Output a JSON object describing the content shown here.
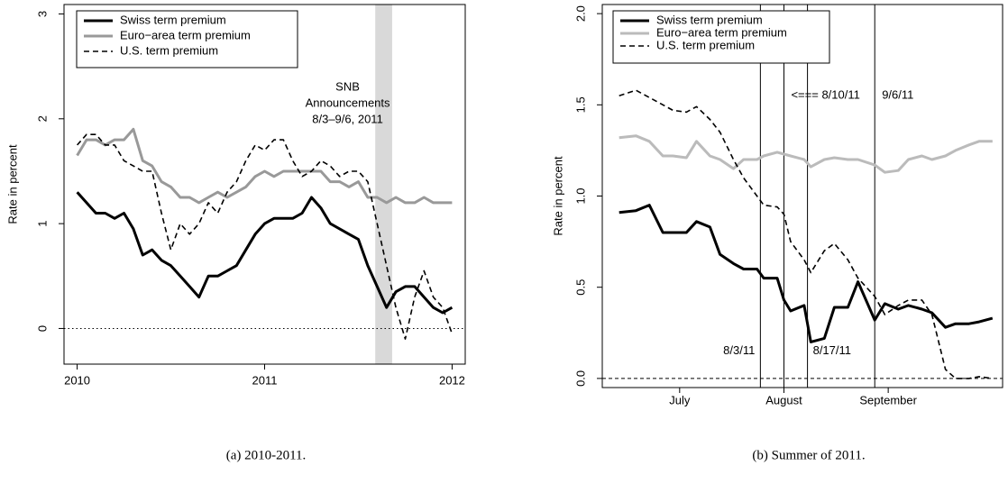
{
  "chart_data": [
    {
      "type": "line",
      "caption": "(a) 2010-2011.",
      "ylabel": "Rate in percent",
      "x": [
        2010,
        2010.05,
        2010.1,
        2010.15,
        2010.2,
        2010.25,
        2010.3,
        2010.35,
        2010.4,
        2010.45,
        2010.5,
        2010.55,
        2010.6,
        2010.65,
        2010.7,
        2010.75,
        2010.8,
        2010.85,
        2010.9,
        2010.95,
        2011,
        2011.05,
        2011.1,
        2011.15,
        2011.2,
        2011.25,
        2011.3,
        2011.35,
        2011.4,
        2011.45,
        2011.5,
        2011.55,
        2011.6,
        2011.65,
        2011.7,
        2011.75,
        2011.8,
        2011.85,
        2011.9,
        2011.95,
        2012
      ],
      "series": [
        {
          "name": "Swiss term premium",
          "color": "#000000",
          "width": 3,
          "line_style": "solid",
          "values": [
            1.3,
            1.2,
            1.1,
            1.1,
            1.05,
            1.1,
            0.95,
            0.7,
            0.75,
            0.65,
            0.6,
            0.5,
            0.4,
            0.3,
            0.5,
            0.5,
            0.55,
            0.6,
            0.75,
            0.9,
            1.0,
            1.05,
            1.05,
            1.05,
            1.1,
            1.25,
            1.15,
            1.0,
            0.95,
            0.9,
            0.85,
            0.6,
            0.4,
            0.2,
            0.35,
            0.4,
            0.4,
            0.3,
            0.2,
            0.15,
            0.2
          ]
        },
        {
          "name": "Euro−area term premium",
          "color": "#999999",
          "width": 3,
          "line_style": "solid",
          "values": [
            1.65,
            1.8,
            1.8,
            1.75,
            1.8,
            1.8,
            1.9,
            1.6,
            1.55,
            1.4,
            1.35,
            1.25,
            1.25,
            1.2,
            1.25,
            1.3,
            1.25,
            1.3,
            1.35,
            1.45,
            1.5,
            1.45,
            1.5,
            1.5,
            1.5,
            1.5,
            1.5,
            1.4,
            1.4,
            1.35,
            1.4,
            1.25,
            1.25,
            1.2,
            1.25,
            1.2,
            1.2,
            1.25,
            1.2,
            1.2,
            1.2
          ]
        },
        {
          "name": "U.S. term premium",
          "color": "#000000",
          "width": 1.6,
          "line_style": "dashed",
          "values": [
            1.75,
            1.85,
            1.85,
            1.75,
            1.75,
            1.6,
            1.55,
            1.5,
            1.5,
            1.1,
            0.75,
            1.0,
            0.9,
            1.0,
            1.2,
            1.1,
            1.3,
            1.4,
            1.6,
            1.75,
            1.7,
            1.8,
            1.8,
            1.6,
            1.45,
            1.5,
            1.6,
            1.55,
            1.45,
            1.5,
            1.5,
            1.4,
            1.0,
            0.6,
            0.2,
            -0.1,
            0.3,
            0.55,
            0.3,
            0.2,
            -0.05
          ]
        }
      ],
      "xlim": [
        2009.93,
        2012.07
      ],
      "xticks": [
        2010,
        2011,
        2012
      ],
      "ylim": [
        -0.34,
        3.09
      ],
      "yticks": [
        0,
        1,
        2,
        3
      ],
      "hline": 0,
      "hline_style": "dotted",
      "shade": {
        "from": 2011.59,
        "to": 2011.68
      },
      "annotation": [
        "SNB",
        "Announcements",
        "8/3–9/6, 2011"
      ],
      "legend": "top-left"
    },
    {
      "type": "line",
      "caption": "(b) Summer of 2011.",
      "ylabel": "Rate in percent",
      "x": [
        "2011-06-22",
        "2011-06-27",
        "2011-07-01",
        "2011-07-05",
        "2011-07-08",
        "2011-07-12",
        "2011-07-15",
        "2011-07-19",
        "2011-07-22",
        "2011-07-26",
        "2011-07-29",
        "2011-08-02",
        "2011-08-04",
        "2011-08-08",
        "2011-08-10",
        "2011-08-12",
        "2011-08-16",
        "2011-08-18",
        "2011-08-22",
        "2011-08-25",
        "2011-08-29",
        "2011-09-01",
        "2011-09-06",
        "2011-09-09",
        "2011-09-13",
        "2011-09-16",
        "2011-09-20",
        "2011-09-23",
        "2011-09-27",
        "2011-09-30",
        "2011-10-04",
        "2011-10-07",
        "2011-10-11"
      ],
      "series": [
        {
          "name": "Swiss term premium",
          "color": "#000000",
          "width": 3,
          "line_style": "solid",
          "values": [
            0.91,
            0.92,
            0.95,
            0.8,
            0.8,
            0.8,
            0.86,
            0.83,
            0.68,
            0.63,
            0.6,
            0.6,
            0.55,
            0.55,
            0.43,
            0.37,
            0.4,
            0.2,
            0.22,
            0.39,
            0.39,
            0.53,
            0.32,
            0.41,
            0.38,
            0.4,
            0.38,
            0.36,
            0.28,
            0.3,
            0.3,
            0.31,
            0.33
          ]
        },
        {
          "name": "Euro−area term premium",
          "color": "#bbbbbb",
          "width": 3,
          "line_style": "solid",
          "values": [
            1.32,
            1.33,
            1.3,
            1.22,
            1.22,
            1.21,
            1.3,
            1.22,
            1.2,
            1.15,
            1.2,
            1.2,
            1.22,
            1.24,
            1.23,
            1.22,
            1.2,
            1.16,
            1.2,
            1.21,
            1.2,
            1.2,
            1.17,
            1.13,
            1.14,
            1.2,
            1.22,
            1.2,
            1.22,
            1.25,
            1.28,
            1.3,
            1.3
          ]
        },
        {
          "name": "U.S. term premium",
          "color": "#000000",
          "width": 1.6,
          "line_style": "dashed",
          "values": [
            1.55,
            1.58,
            1.54,
            1.5,
            1.47,
            1.46,
            1.49,
            1.42,
            1.35,
            1.2,
            1.1,
            1.0,
            0.95,
            0.94,
            0.9,
            0.75,
            0.65,
            0.58,
            0.7,
            0.74,
            0.65,
            0.55,
            0.45,
            0.35,
            0.4,
            0.43,
            0.43,
            0.35,
            0.05,
            0.0,
            0.0,
            0.01,
            0.0
          ]
        }
      ],
      "xlim": [
        "2011-06-17",
        "2011-10-14"
      ],
      "xticks": [
        {
          "value": "2011-07-10",
          "label": "July"
        },
        {
          "value": "2011-08-10",
          "label": "August"
        },
        {
          "value": "2011-09-10",
          "label": "September"
        }
      ],
      "ylim": [
        -0.05,
        2.05
      ],
      "yticks": [
        0.0,
        0.5,
        1.0,
        1.5,
        2.0
      ],
      "ytick_labels": [
        "0.0",
        "0.5",
        "1.0",
        "1.5",
        "2.0"
      ],
      "hline": 0,
      "hline_style": "dashed",
      "vlines": [
        {
          "x": "2011-08-03",
          "label": "8/3/11"
        },
        {
          "x": "2011-08-10",
          "label": "<=== 8/10/11"
        },
        {
          "x": "2011-08-17",
          "label": "8/17/11"
        },
        {
          "x": "2011-09-06",
          "label": "9/6/11"
        }
      ],
      "legend": "top-left"
    }
  ]
}
